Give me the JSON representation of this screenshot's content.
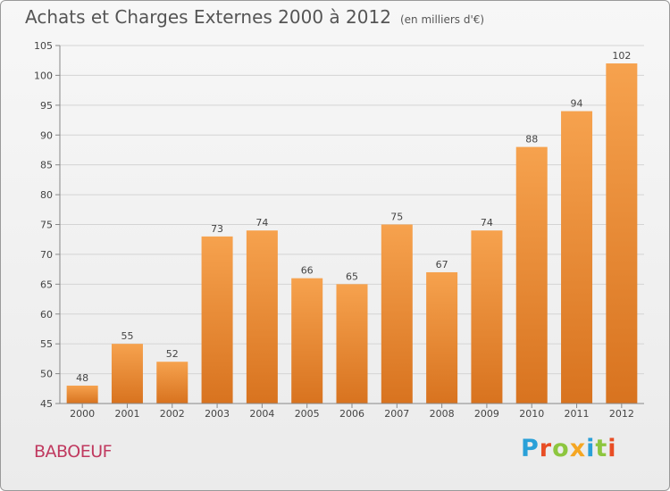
{
  "title": "Achats et Charges Externes 2000 à 2012",
  "unit": "(en milliers d'€)",
  "commune": "BABOEUF",
  "brand": {
    "text": "Proxiti",
    "letter_colors": [
      "#2aa0d8",
      "#e84d24",
      "#8dc63f",
      "#f5a623",
      "#2aa0d8",
      "#8dc63f",
      "#e84d24"
    ]
  },
  "colors": {
    "bar_top": "#f6a24e",
    "bar_bottom": "#d8731f",
    "grid": "#d4d4d4",
    "axis": "#888888",
    "text": "#444444"
  },
  "chart_data": {
    "type": "bar",
    "categories": [
      "2000",
      "2001",
      "2002",
      "2003",
      "2004",
      "2005",
      "2006",
      "2007",
      "2008",
      "2009",
      "2010",
      "2011",
      "2012"
    ],
    "values": [
      48,
      55,
      52,
      73,
      74,
      66,
      65,
      75,
      67,
      74,
      88,
      94,
      102
    ],
    "ylim": [
      45,
      105
    ],
    "yticks": [
      45,
      50,
      55,
      60,
      65,
      70,
      75,
      80,
      85,
      90,
      95,
      100,
      105
    ],
    "grid": true,
    "legend": "none"
  }
}
